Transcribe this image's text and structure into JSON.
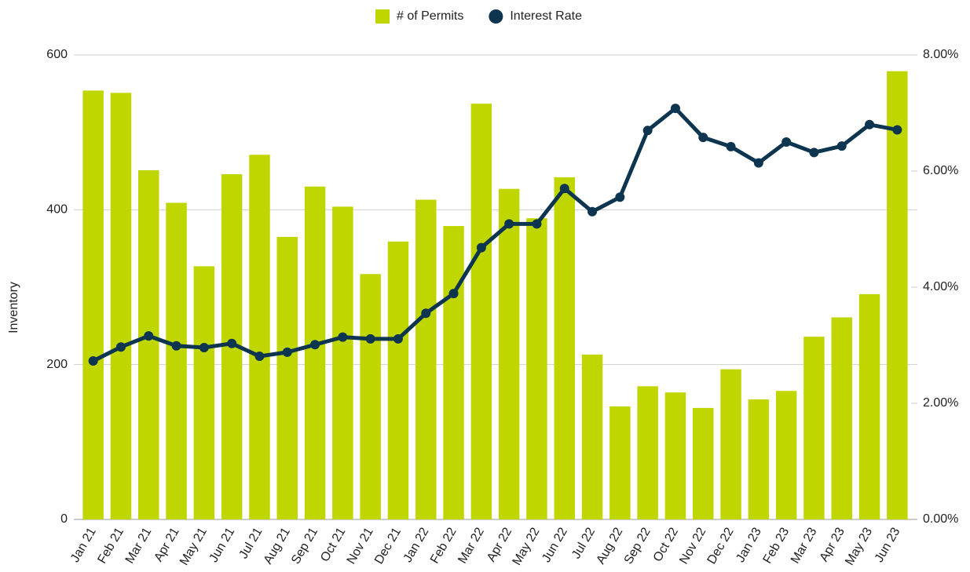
{
  "chart_data": {
    "type": "combo",
    "y_label": "Inventory",
    "categories": [
      "Jan 21",
      "Feb 21",
      "Mar 21",
      "Apr 21",
      "May 21",
      "Jun 21",
      "Jul 21",
      "Aug 21",
      "Sep 21",
      "Oct 21",
      "Nov 21",
      "Dec 21",
      "Jan 22",
      "Feb 22",
      "Mar 22",
      "Apr 22",
      "May 22",
      "Jun 22",
      "Jul 22",
      "Aug 22",
      "Sep 22",
      "Oct 22",
      "Nov 22",
      "Dec 22",
      "Jan 23",
      "Feb 23",
      "Mar 23",
      "Apr 23",
      "May 23",
      "Jun 23"
    ],
    "series": [
      {
        "name": "# of Permits",
        "type": "bar",
        "color": "#c0d600",
        "values": [
          554,
          551,
          451,
          409,
          327,
          446,
          471,
          365,
          430,
          404,
          317,
          359,
          413,
          379,
          537,
          427,
          389,
          442,
          213,
          146,
          172,
          164,
          144,
          194,
          155,
          166,
          236,
          261,
          291,
          579
        ]
      },
      {
        "name": "Interest Rate",
        "type": "line",
        "axis": "y2",
        "color": "#0e3550",
        "values": [
          2.73,
          2.97,
          3.16,
          2.99,
          2.96,
          3.03,
          2.81,
          2.88,
          3.01,
          3.14,
          3.11,
          3.11,
          3.55,
          3.89,
          4.68,
          5.09,
          5.09,
          5.7,
          5.3,
          5.55,
          6.7,
          7.08,
          6.58,
          6.42,
          6.14,
          6.5,
          6.32,
          6.43,
          6.8,
          6.71
        ]
      }
    ],
    "ylim": [
      0,
      600
    ],
    "yticks": [
      0,
      200,
      400,
      600
    ],
    "y2lim": [
      0,
      8
    ],
    "y2ticks": [
      {
        "value": 0,
        "label": "0.00%"
      },
      {
        "value": 2,
        "label": "2.00%"
      },
      {
        "value": 4,
        "label": "4.00%"
      },
      {
        "value": 6,
        "label": "6.00%"
      },
      {
        "value": 8,
        "label": "8.00%"
      }
    ],
    "grid": true,
    "legend": "top"
  }
}
